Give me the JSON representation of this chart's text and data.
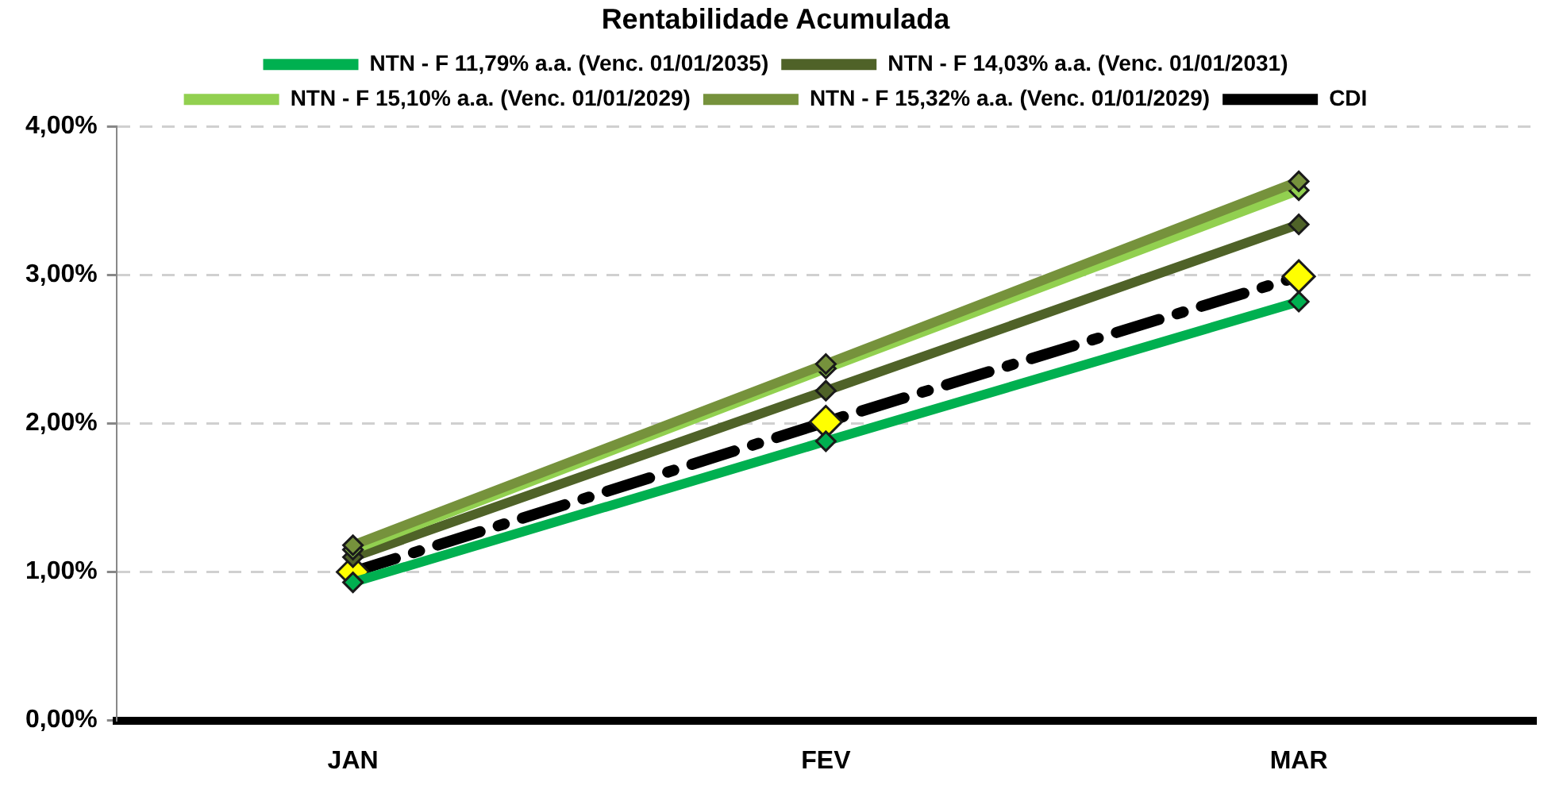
{
  "chart_data": {
    "type": "line",
    "title": "Rentabilidade Acumulada",
    "categories": [
      "JAN",
      "FEV",
      "MAR"
    ],
    "series": [
      {
        "name": "NTN - F 11,79% a.a. (Venc. 01/01/2035)",
        "color": "#00b050",
        "values": [
          0.93,
          1.88,
          2.82
        ]
      },
      {
        "name": "NTN - F 14,03% a.a. (Venc. 01/01/2031)",
        "color": "#4f6228",
        "values": [
          1.1,
          2.22,
          3.34
        ]
      },
      {
        "name": "NTN - F 15,10% a.a. (Venc. 01/01/2029)",
        "color": "#92d050",
        "values": [
          1.15,
          2.37,
          3.57
        ]
      },
      {
        "name": "NTN - F 15,32% a.a. (Venc. 01/01/2029)",
        "color": "#76923c",
        "values": [
          1.18,
          2.4,
          3.63
        ]
      },
      {
        "name": "CDI",
        "color": "#000000",
        "colors": [
          "#ffff00",
          "#ffff00",
          "#ffff00"
        ],
        "line_style": "dashed",
        "values": [
          1.0,
          2.01,
          2.99
        ]
      }
    ],
    "ylim": [
      0,
      4
    ],
    "yticks": [
      {
        "value": 0,
        "label": "0,00%"
      },
      {
        "value": 1,
        "label": "1,00%"
      },
      {
        "value": 2,
        "label": "2,00%"
      },
      {
        "value": 3,
        "label": "3,00%"
      },
      {
        "value": 4,
        "label": "4,00%"
      }
    ],
    "grid": "y",
    "legend": "top",
    "marker": "diamond"
  }
}
